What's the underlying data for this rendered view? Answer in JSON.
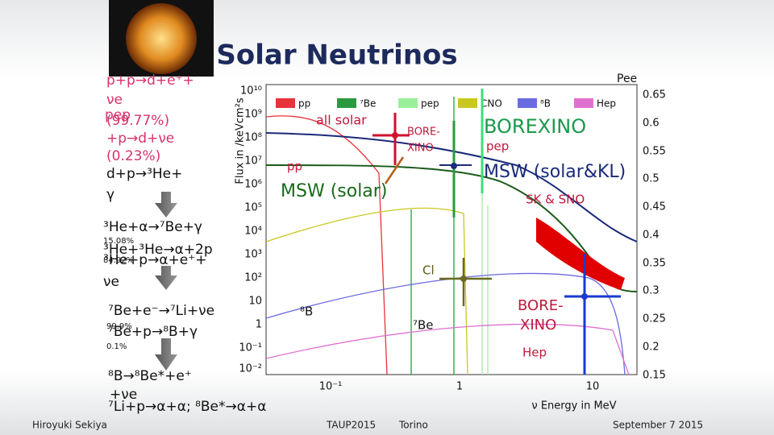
{
  "header": {
    "title": "Solar Neutrinos"
  },
  "reactions": [
    "p+p→d+e⁺+",
    "νe",
    "pep",
    "(99.77%)",
    "+p→d+νe",
    "(0.23%)",
    "d+p→³He+",
    "γ",
    "³He+α→⁷Be+γ",
    "15.08%",
    "³He+³He→α+2p",
    "84.92%",
    "³He+p→α+e⁺+",
    "νe",
    "⁷Be+e⁻→⁷Li+νe",
    "99.9%",
    "⁷Be+p→⁸B+γ",
    "0.1%",
    "⁸B→⁸Be*+e⁺",
    "+νe",
    "⁷Li+p→α+α; ⁸Be*→α+α"
  ],
  "chart": {
    "y_label": "Flux in /keVcm²s",
    "y_ticks": [
      "10¹⁰",
      "10⁹",
      "10⁸",
      "10⁷",
      "10⁶",
      "10⁵",
      "10⁴",
      "10³",
      "10²",
      "10",
      "1",
      "10⁻¹",
      "10⁻²"
    ],
    "x_ticks": [
      "10⁻¹",
      "1",
      "10"
    ],
    "x_label": "ν Energy in MeV",
    "legend": [
      "pp",
      "⁷Be",
      "pep",
      "CNO",
      "⁸B",
      "Hep"
    ],
    "annotations": [
      "all solar",
      "BORE-",
      "XINO",
      "BOREXINO",
      "pep",
      "pp",
      "MSW (solar)",
      "MSW (solar&KL)",
      "SK & SNO",
      "Cl",
      "⁸B",
      "⁷Be",
      "BORE-",
      "XINO",
      "Hep"
    ],
    "right_label": "Pee",
    "right_ticks": [
      "0.65",
      "0.6",
      "0.55",
      "0.5",
      "0.45",
      "0.4",
      "0.35",
      "0.3",
      "0.25",
      "0.2",
      "0.15"
    ]
  },
  "footer": {
    "author": "Hiroyuki Sekiya",
    "conference": "TAUP2015",
    "location": "Torino",
    "date": "September 7 2015"
  }
}
